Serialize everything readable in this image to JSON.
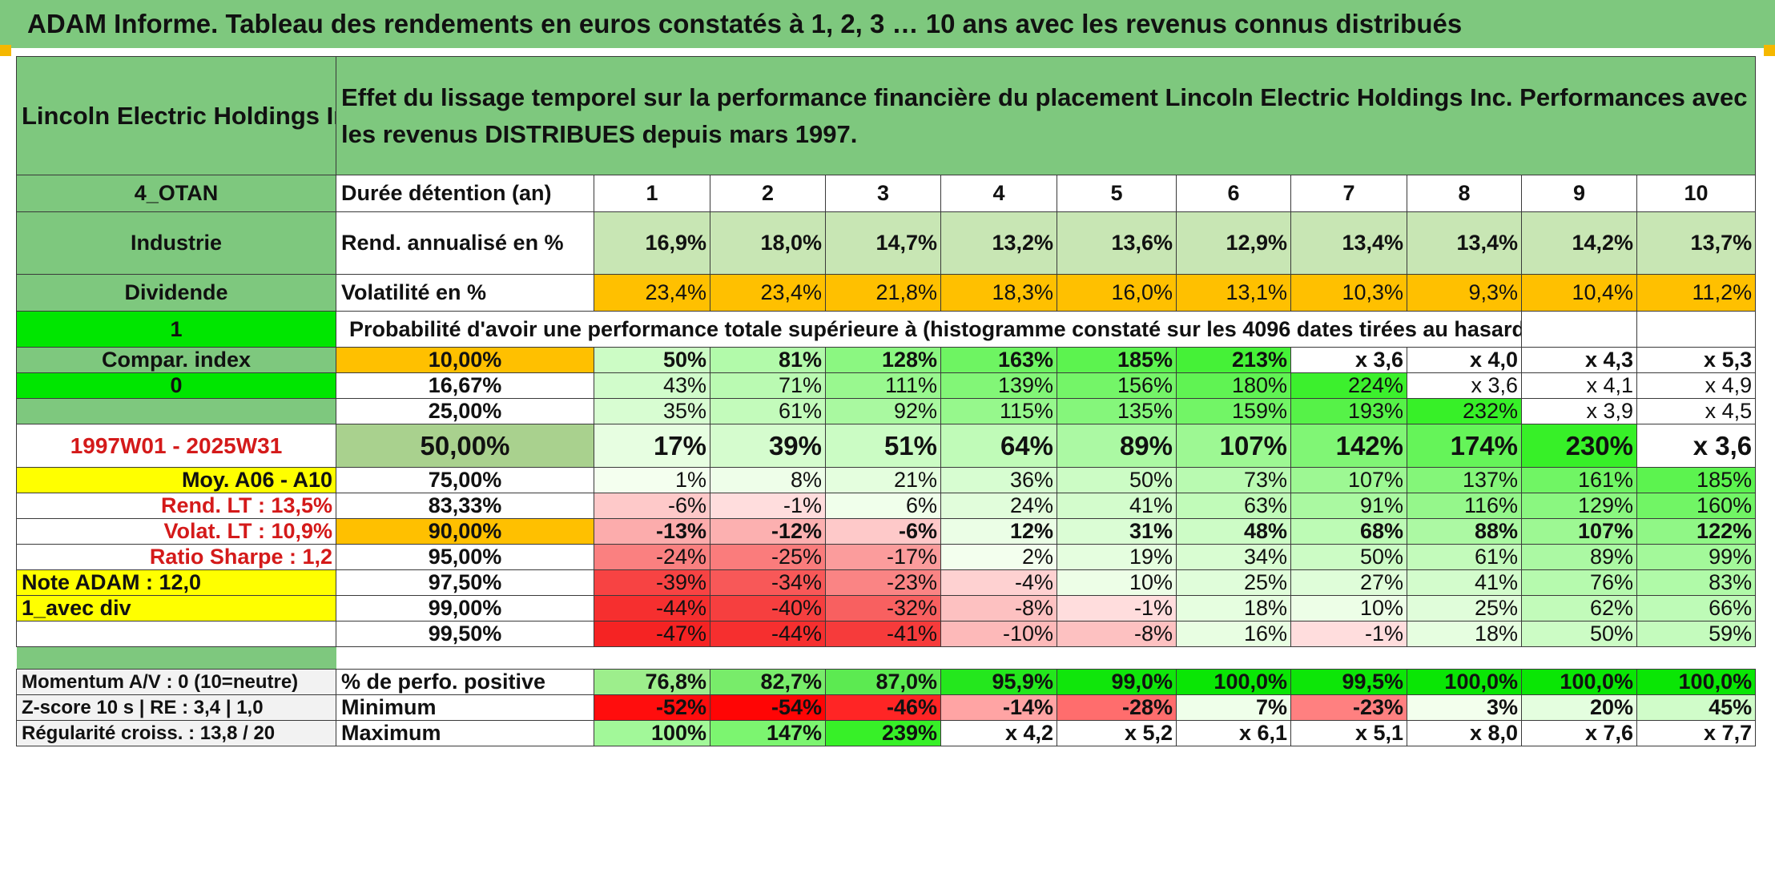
{
  "title": "ADAM Informe. Tableau des rendements en euros constatés à 1, 2, 3 … 10 ans avec les revenus connus distribués",
  "company": "Lincoln Electric Holdings Inc",
  "description": "Effet du lissage temporel sur la performance financière du placement Lincoln Electric Holdings Inc. Performances avec les revenus DISTRIBUES depuis mars 1997.",
  "colors": {
    "header_green": "#7ec87e",
    "bright_green": "#00e600",
    "orange": "#ffc000",
    "yellow": "#ffff00",
    "light_green": "#c8e6b4",
    "red_text": "#d41a1a"
  },
  "left": {
    "code": "4_OTAN",
    "sector": "Industrie",
    "dividend_label": "Dividende",
    "flag_1": "1",
    "compar_label": "Compar. index",
    "flag_0": "0",
    "period": "1997W01 - 2025W31",
    "moy": "Moy. A06 - A10",
    "rend_lt": "Rend. LT :    13,5%",
    "volat_lt": "Volat. LT :    10,9%",
    "sharpe": "Ratio Sharpe :    1,2",
    "note": "Note ADAM : 12,0",
    "avec_div": "1_avec div",
    "momentum": "Momentum A/V : 0 (10=neutre)",
    "zscore": "Z-score 10 s | RE : 3,4 | 1,0",
    "regularite": "Régularité croiss. : 13,8 / 20"
  },
  "headers": {
    "duree": "Durée détention (an)",
    "years": [
      "1",
      "2",
      "3",
      "4",
      "5",
      "6",
      "7",
      "8",
      "9",
      "10"
    ],
    "rend": "Rend. annualisé en %",
    "volat": "Volatilité en %",
    "proba": "Probabilité d'avoir une performance totale supérieure à (histogramme constaté sur les 4096 dates tirées au hasard)",
    "pos": "% de perfo. positive",
    "min": "Minimum",
    "max": "Maximum"
  },
  "rend_values": [
    "16,9%",
    "18,0%",
    "14,7%",
    "13,2%",
    "13,6%",
    "12,9%",
    "13,4%",
    "13,4%",
    "14,2%",
    "13,7%"
  ],
  "volat_values": [
    "23,4%",
    "23,4%",
    "21,8%",
    "18,3%",
    "16,0%",
    "13,1%",
    "10,3%",
    "9,3%",
    "10,4%",
    "11,2%"
  ],
  "proba_rows": [
    {
      "pct": "10,00%",
      "values": [
        "50%",
        "81%",
        "128%",
        "163%",
        "185%",
        "213%",
        "x 3,6",
        "x 4,0",
        "x 4,3",
        "x 5,3"
      ]
    },
    {
      "pct": "16,67%",
      "values": [
        "43%",
        "71%",
        "111%",
        "139%",
        "156%",
        "180%",
        "224%",
        "x 3,6",
        "x 4,1",
        "x 4,9"
      ]
    },
    {
      "pct": "25,00%",
      "values": [
        "35%",
        "61%",
        "92%",
        "115%",
        "135%",
        "159%",
        "193%",
        "232%",
        "x 3,9",
        "x 4,5"
      ]
    },
    {
      "pct": "50,00%",
      "values": [
        "17%",
        "39%",
        "51%",
        "64%",
        "89%",
        "107%",
        "142%",
        "174%",
        "230%",
        "x 3,6"
      ]
    },
    {
      "pct": "75,00%",
      "values": [
        "1%",
        "8%",
        "21%",
        "36%",
        "50%",
        "73%",
        "107%",
        "137%",
        "161%",
        "185%"
      ]
    },
    {
      "pct": "83,33%",
      "values": [
        "-6%",
        "-1%",
        "6%",
        "24%",
        "41%",
        "63%",
        "91%",
        "116%",
        "129%",
        "160%"
      ]
    },
    {
      "pct": "90,00%",
      "values": [
        "-13%",
        "-12%",
        "-6%",
        "12%",
        "31%",
        "48%",
        "68%",
        "88%",
        "107%",
        "122%"
      ]
    },
    {
      "pct": "95,00%",
      "values": [
        "-24%",
        "-25%",
        "-17%",
        "2%",
        "19%",
        "34%",
        "50%",
        "61%",
        "89%",
        "99%"
      ]
    },
    {
      "pct": "97,50%",
      "values": [
        "-39%",
        "-34%",
        "-23%",
        "-4%",
        "10%",
        "25%",
        "27%",
        "41%",
        "76%",
        "83%"
      ]
    },
    {
      "pct": "99,00%",
      "values": [
        "-44%",
        "-40%",
        "-32%",
        "-8%",
        "-1%",
        "18%",
        "10%",
        "25%",
        "62%",
        "66%"
      ]
    },
    {
      "pct": "99,50%",
      "values": [
        "-47%",
        "-44%",
        "-41%",
        "-10%",
        "-8%",
        "16%",
        "-1%",
        "18%",
        "50%",
        "59%"
      ]
    }
  ],
  "pos_values": [
    "76,8%",
    "82,7%",
    "87,0%",
    "95,9%",
    "99,0%",
    "100,0%",
    "99,5%",
    "100,0%",
    "100,0%",
    "100,0%"
  ],
  "min_values": [
    "-52%",
    "-54%",
    "-46%",
    "-14%",
    "-28%",
    "7%",
    "-23%",
    "3%",
    "20%",
    "45%"
  ],
  "max_values": [
    "100%",
    "147%",
    "239%",
    "x 4,2",
    "x 5,2",
    "x 6,1",
    "x 5,1",
    "x 8,0",
    "x 7,6",
    "x 7,7"
  ]
}
